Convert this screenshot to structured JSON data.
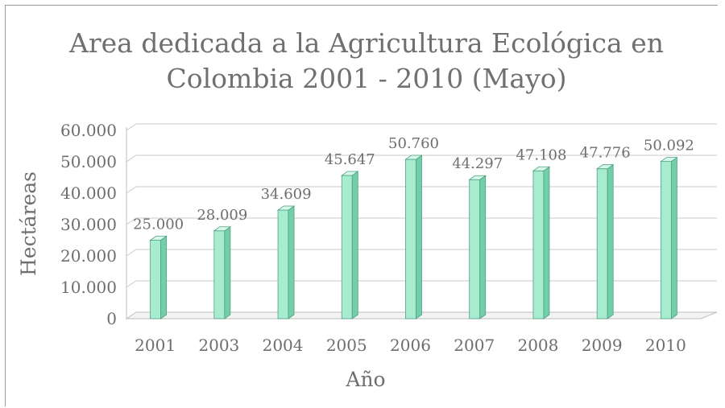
{
  "chart_data": {
    "type": "bar",
    "title_line1": "Area dedicada a la Agricultura Ecológica en",
    "title_line2": "Colombia 2001 - 2010 (Mayo)",
    "xlabel": "Año",
    "ylabel": "Hectáreas",
    "categories": [
      "2001",
      "2003",
      "2004",
      "2005",
      "2006",
      "2007",
      "2008",
      "2009",
      "2010"
    ],
    "values": [
      25000,
      28009,
      34609,
      45647,
      50760,
      44297,
      47108,
      47776,
      50092
    ],
    "data_labels": [
      "25.000",
      "28.009",
      "34.609",
      "45.647",
      "50.760",
      "44.297",
      "47.108",
      "47.776",
      "50.092"
    ],
    "yticks": [
      "0",
      "10.000",
      "20.000",
      "30.000",
      "40.000",
      "50.000",
      "60.000"
    ],
    "ylim": [
      0,
      60000
    ],
    "grid": true,
    "bar_style": "3d",
    "bar_color": "#a8ecd0",
    "bar_side_color": "#72cfa8",
    "bar_top_color": "#d6f8ea"
  }
}
